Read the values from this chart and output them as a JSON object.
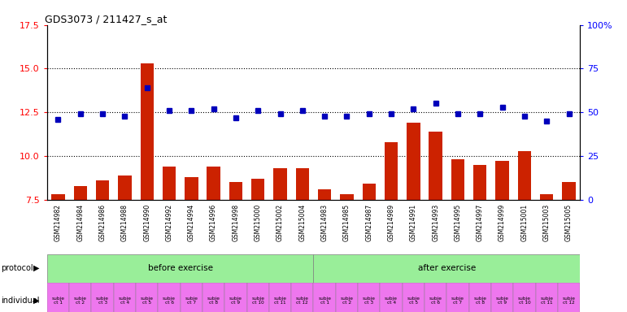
{
  "title": "GDS3073 / 211427_s_at",
  "samples": [
    "GSM214982",
    "GSM214984",
    "GSM214986",
    "GSM214988",
    "GSM214990",
    "GSM214992",
    "GSM214994",
    "GSM214996",
    "GSM214998",
    "GSM215000",
    "GSM215002",
    "GSM215004",
    "GSM214983",
    "GSM214985",
    "GSM214987",
    "GSM214989",
    "GSM214991",
    "GSM214993",
    "GSM214995",
    "GSM214997",
    "GSM214999",
    "GSM215001",
    "GSM215003",
    "GSM215005"
  ],
  "counts": [
    7.8,
    8.3,
    8.6,
    8.9,
    15.3,
    9.4,
    8.8,
    9.4,
    8.5,
    8.7,
    9.3,
    9.3,
    8.1,
    7.8,
    8.4,
    10.8,
    11.9,
    11.4,
    9.8,
    9.5,
    9.7,
    10.3,
    7.8,
    8.5
  ],
  "percentile_ranks": [
    46,
    49,
    49,
    48,
    64,
    51,
    51,
    52,
    47,
    51,
    49,
    51,
    48,
    48,
    49,
    49,
    52,
    55,
    49,
    49,
    53,
    48,
    45,
    49
  ],
  "individuals": [
    "subje\nct 1",
    "subje\nct 2",
    "subje\nct 3",
    "subje\nct 4",
    "subje\nct 5",
    "subje\nct 6",
    "subje\nct 7",
    "subje\nct 8",
    "subje\nct 9",
    "subje\nct 10",
    "subje\nct 11",
    "subje\nct 12",
    "subje\nct 1",
    "subje\nct 2",
    "subje\nct 3",
    "subje\nct 4",
    "subje\nct 5",
    "subje\nct 6",
    "subje\nct 7",
    "subje\nct 8",
    "subje\nct 9",
    "subje\nct 10",
    "subje\nct 11",
    "subje\nct 12"
  ],
  "protocol_labels": [
    "before exercise",
    "after exercise"
  ],
  "protocol_color": "#99ee99",
  "individual_row_color": "#ee77ee",
  "bar_color": "#cc2200",
  "dot_color": "#0000bb",
  "ylim_left": [
    7.5,
    17.5
  ],
  "ylim_right": [
    0,
    100
  ],
  "yticks_left": [
    7.5,
    10.0,
    12.5,
    15.0,
    17.5
  ],
  "yticks_right": [
    0,
    25,
    50,
    75,
    100
  ],
  "bg_color": "#ffffff",
  "tick_bg_color": "#cccccc",
  "before_count": 12,
  "after_count": 12
}
